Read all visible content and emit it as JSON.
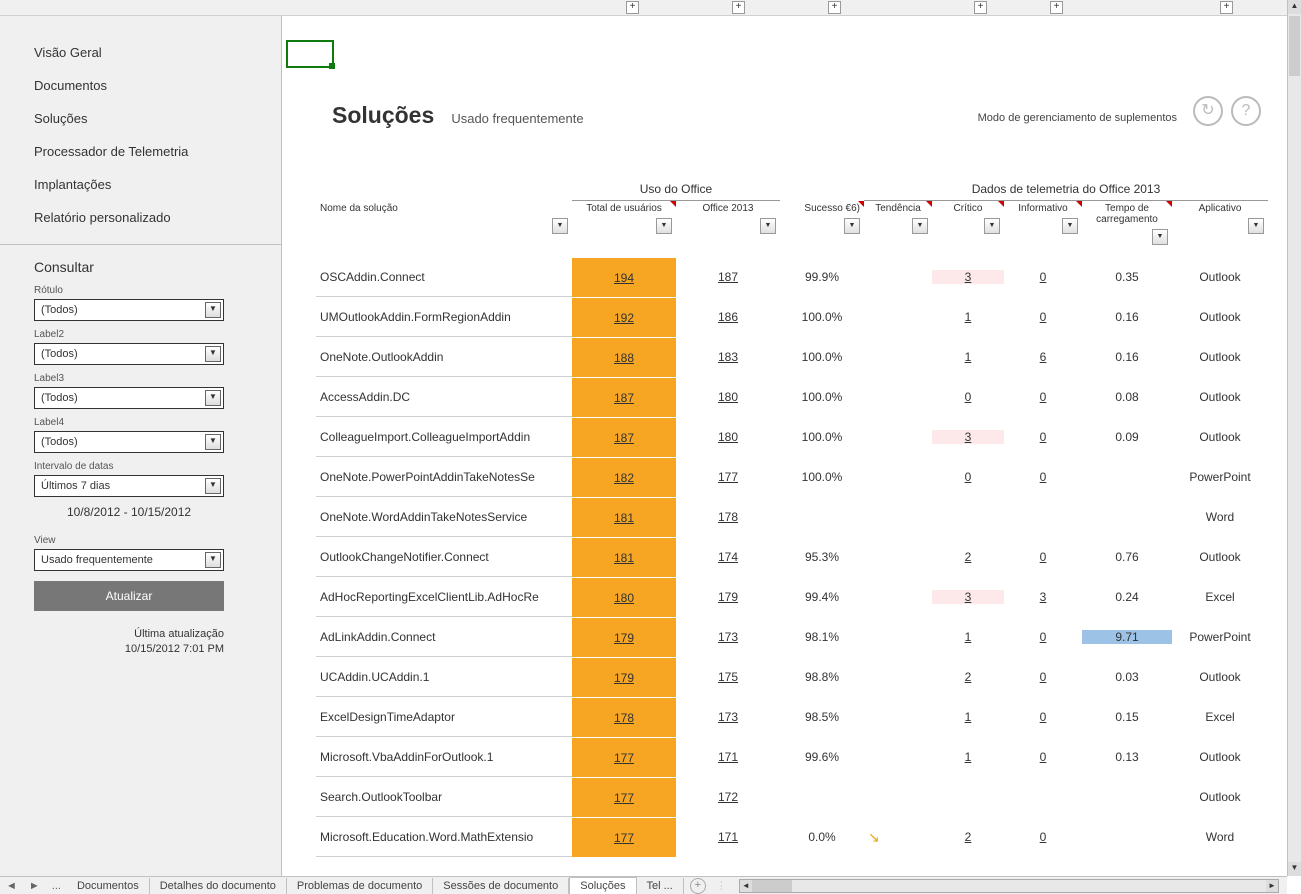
{
  "outline_plus_positions": [
    626,
    732,
    828,
    974,
    1050,
    1220
  ],
  "sidebar": {
    "nav": [
      "Visão Geral",
      "Documentos",
      "Soluções",
      "Processador de Telemetria",
      "Implantações",
      "Relatório personalizado"
    ],
    "consult_title": "Consultar",
    "filters": [
      {
        "label": "Rótulo",
        "value": "(Todos)"
      },
      {
        "label": "Label2",
        "value": "(Todos)"
      },
      {
        "label": "Label3",
        "value": "(Todos)"
      },
      {
        "label": "Label4",
        "value": "(Todos)"
      },
      {
        "label": "Intervalo de datas",
        "value": "Últimos 7 dias"
      }
    ],
    "date_range": "10/8/2012 - 10/15/2012",
    "view_label": "View",
    "view_value": "Usado frequentemente",
    "update_btn": "Atualizar",
    "last_update_label": "Última atualização",
    "last_update_value": "10/15/2012 7:01 PM"
  },
  "header": {
    "title": "Soluções",
    "subtitle": "Usado frequentemente",
    "mode_text": "Modo de gerenciamento de suplementos",
    "icon_refresh": "↻",
    "icon_help": "?"
  },
  "grid": {
    "group_headers": {
      "usage": "Uso do Office",
      "telemetry": "Dados de telemetria do Office 2013"
    },
    "columns": {
      "name": "Nome da solução",
      "total": "Total de usuários",
      "office": "Office 2013",
      "success": "Sucesso €6)",
      "trend": "Tendência",
      "critical": "Crítico",
      "info": "Informativo",
      "load": "Tempo de carregamento",
      "app": "Aplicativo"
    },
    "rows": [
      {
        "name": "OSCAddin.Connect",
        "total": "194",
        "office": "187",
        "success": "99.9%",
        "trend": "",
        "critical": "3",
        "info": "0",
        "load": "0.35",
        "app": "Outlook",
        "crit_hl": true
      },
      {
        "name": "UMOutlookAddin.FormRegionAddin",
        "total": "192",
        "office": "186",
        "success": "100.0%",
        "trend": "",
        "critical": "1",
        "info": "0",
        "load": "0.16",
        "app": "Outlook"
      },
      {
        "name": "OneNote.OutlookAddin",
        "total": "188",
        "office": "183",
        "success": "100.0%",
        "trend": "",
        "critical": "1",
        "info": "6",
        "load": "0.16",
        "app": "Outlook"
      },
      {
        "name": "AccessAddin.DC",
        "total": "187",
        "office": "180",
        "success": "100.0%",
        "trend": "",
        "critical": "0",
        "info": "0",
        "load": "0.08",
        "app": "Outlook"
      },
      {
        "name": "ColleagueImport.ColleagueImportAddin",
        "total": "187",
        "office": "180",
        "success": "100.0%",
        "trend": "",
        "critical": "3",
        "info": "0",
        "load": "0.09",
        "app": "Outlook",
        "crit_hl": true
      },
      {
        "name": "OneNote.PowerPointAddinTakeNotesSe",
        "total": "182",
        "office": "177",
        "success": "100.0%",
        "trend": "",
        "critical": "0",
        "info": "0",
        "load": "",
        "app": "PowerPoint"
      },
      {
        "name": "OneNote.WordAddinTakeNotesService",
        "total": "181",
        "office": "178",
        "success": "",
        "trend": "",
        "critical": "",
        "info": "",
        "load": "",
        "app": "Word"
      },
      {
        "name": "OutlookChangeNotifier.Connect",
        "total": "181",
        "office": "174",
        "success": "95.3%",
        "trend": "",
        "critical": "2",
        "info": "0",
        "load": "0.76",
        "app": "Outlook"
      },
      {
        "name": "AdHocReportingExcelClientLib.AdHocRe",
        "total": "180",
        "office": "179",
        "success": "99.4%",
        "trend": "",
        "critical": "3",
        "info": "3",
        "load": "0.24",
        "app": "Excel",
        "crit_hl": true
      },
      {
        "name": "AdLinkAddin.Connect",
        "total": "179",
        "office": "173",
        "success": "98.1%",
        "trend": "",
        "critical": "1",
        "info": "0",
        "load": "9.71",
        "app": "PowerPoint",
        "load_hl": true
      },
      {
        "name": "UCAddin.UCAddin.1",
        "total": "179",
        "office": "175",
        "success": "98.8%",
        "trend": "",
        "critical": "2",
        "info": "0",
        "load": "0.03",
        "app": "Outlook"
      },
      {
        "name": "ExcelDesignTimeAdaptor",
        "total": "178",
        "office": "173",
        "success": "98.5%",
        "trend": "",
        "critical": "1",
        "info": "0",
        "load": "0.15",
        "app": "Excel"
      },
      {
        "name": "Microsoft.VbaAddinForOutlook.1",
        "total": "177",
        "office": "171",
        "success": "99.6%",
        "trend": "",
        "critical": "1",
        "info": "0",
        "load": "0.13",
        "app": "Outlook"
      },
      {
        "name": "Search.OutlookToolbar",
        "total": "177",
        "office": "172",
        "success": "",
        "trend": "",
        "critical": "",
        "info": "",
        "load": "",
        "app": "Outlook"
      },
      {
        "name": "Microsoft.Education.Word.MathExtensio",
        "total": "177",
        "office": "171",
        "success": "0.0%",
        "trend": "↘",
        "critical": "2",
        "info": "0",
        "load": "",
        "app": "Word"
      }
    ]
  },
  "tabs": {
    "items": [
      "Documentos",
      "Detalhes do documento",
      "Problemas de documento",
      "Sessões de documento",
      "Soluções",
      "Tel ..."
    ],
    "active_index": 4,
    "nav_prev": "◄",
    "nav_next": "►",
    "nav_more": "...",
    "new": "+"
  },
  "colors": {
    "highlight_orange": "#f6a623",
    "highlight_blue": "#9cc3e6",
    "highlight_pink": "#fde9ea",
    "border": "#c0c0c0"
  }
}
